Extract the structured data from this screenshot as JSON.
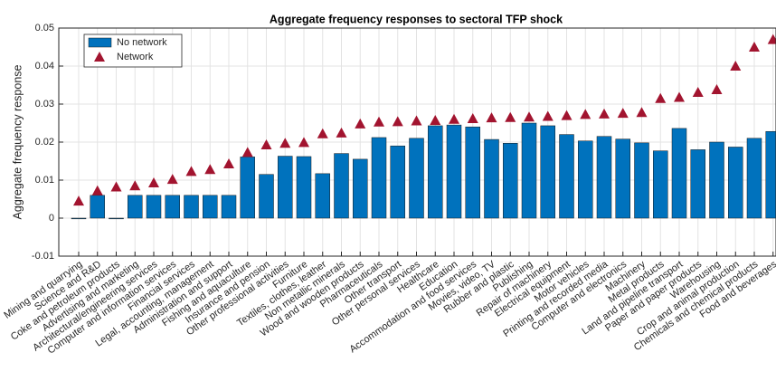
{
  "chart_data": {
    "type": "bar",
    "title": "Aggregate frequency responses to sectoral TFP shock",
    "y_label": "Aggregate frequency response",
    "categories": [
      "Mining and quarrying",
      "Science and R&D",
      "Coke and petroleum products",
      "Advertising and marketing",
      "Architectural/engineering services",
      "Computer and information services",
      "Financial services",
      "Legal, accounting, management",
      "Administration and support",
      "Fishing and aquaculture",
      "Insurance and pension",
      "Other professional activities",
      "Furniture",
      "Textiles, clothes, leather",
      "Non metallic minerals",
      "Wood and wooden products",
      "Pharmaceuticals",
      "Other transport",
      "Other personal services",
      "Healthcare",
      "Education",
      "Accommodation and food services",
      "Movies, video, TV",
      "Rubber and plastic",
      "Publishing",
      "Repair of machinery",
      "Electrical equipment",
      "Motor vehicles",
      "Printing and recorded media",
      "Computer and electronics",
      "Machinery",
      "Metal products",
      "Land and pipeline transport",
      "Paper and paper products",
      "Warehousing",
      "Crop and animal production",
      "Chemicals and chemical products",
      "Food and beverages"
    ],
    "series": [
      {
        "name": "No network",
        "color": "#0072bd",
        "mark": "bar",
        "values": [
          -0.0002,
          0.006,
          -0.0002,
          0.006,
          0.006,
          0.006,
          0.006,
          0.006,
          0.006,
          0.0161,
          0.0115,
          0.0163,
          0.0162,
          0.0117,
          0.017,
          0.0155,
          0.0212,
          0.019,
          0.021,
          0.0243,
          0.0245,
          0.024,
          0.0207,
          0.0197,
          0.025,
          0.0243,
          0.022,
          0.0203,
          0.0215,
          0.0208,
          0.0198,
          0.0177,
          0.0236,
          0.018,
          0.02,
          0.0187,
          0.021,
          0.0228
        ]
      },
      {
        "name": "Network",
        "color": "#a2142f",
        "mark": "triangle",
        "values": [
          0.0045,
          0.0072,
          0.0082,
          0.0085,
          0.0093,
          0.0102,
          0.0123,
          0.0128,
          0.0143,
          0.0173,
          0.0193,
          0.0197,
          0.0199,
          0.0222,
          0.0224,
          0.0248,
          0.0253,
          0.0254,
          0.0256,
          0.0257,
          0.026,
          0.0262,
          0.0264,
          0.0265,
          0.0266,
          0.0268,
          0.027,
          0.0273,
          0.0274,
          0.0276,
          0.0278,
          0.0315,
          0.0318,
          0.0331,
          0.0338,
          0.04,
          0.045,
          0.047
        ]
      }
    ],
    "ylim": [
      -0.01,
      0.05
    ],
    "yticks": [
      -0.01,
      0,
      0.01,
      0.02,
      0.03,
      0.04,
      0.05
    ],
    "grid": true,
    "legend": "top-left"
  }
}
